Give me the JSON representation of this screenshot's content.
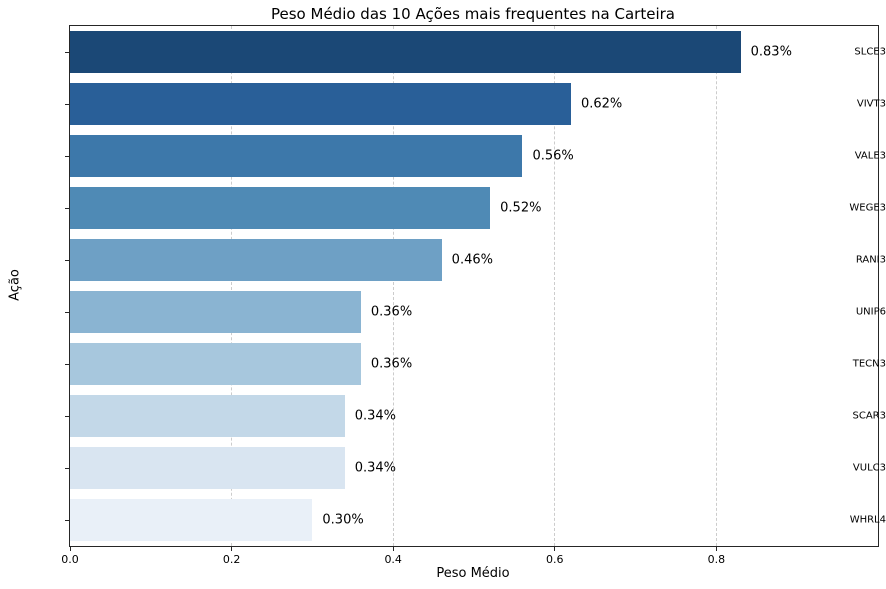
{
  "chart_data": {
    "type": "bar",
    "orientation": "horizontal",
    "title": "Peso Médio das 10 Ações mais frequentes na Carteira",
    "xlabel": "Peso Médio",
    "ylabel": "Ação",
    "categories": [
      "SLCE3",
      "VIVT3",
      "VALE3",
      "WEGE3",
      "RANI3",
      "UNIP6",
      "TECN3",
      "SCAR3",
      "VULC3",
      "WHRL4"
    ],
    "values": [
      0.83,
      0.62,
      0.56,
      0.52,
      0.46,
      0.36,
      0.36,
      0.34,
      0.34,
      0.3
    ],
    "value_labels": [
      "0.83%",
      "0.62%",
      "0.56%",
      "0.52%",
      "0.46%",
      "0.36%",
      "0.36%",
      "0.34%",
      "0.34%",
      "0.30%"
    ],
    "bar_colors": [
      "#1b4876",
      "#295f98",
      "#3d78aa",
      "#4f8ab5",
      "#6ea0c5",
      "#8ab4d2",
      "#a7c7dd",
      "#c3d8e8",
      "#d9e5f1",
      "#e9f0f8"
    ],
    "xlim": [
      0.0,
      1.0
    ],
    "xticks": [
      0.0,
      0.2,
      0.4,
      0.6,
      0.8
    ],
    "xtick_labels": [
      "0.0",
      "0.2",
      "0.4",
      "0.6",
      "0.8"
    ],
    "grid": "vertical-dashed",
    "legend": "none"
  },
  "colors": {
    "grid": "#cccccc",
    "spine": "#262626",
    "text": "#000000",
    "background": "#ffffff"
  }
}
